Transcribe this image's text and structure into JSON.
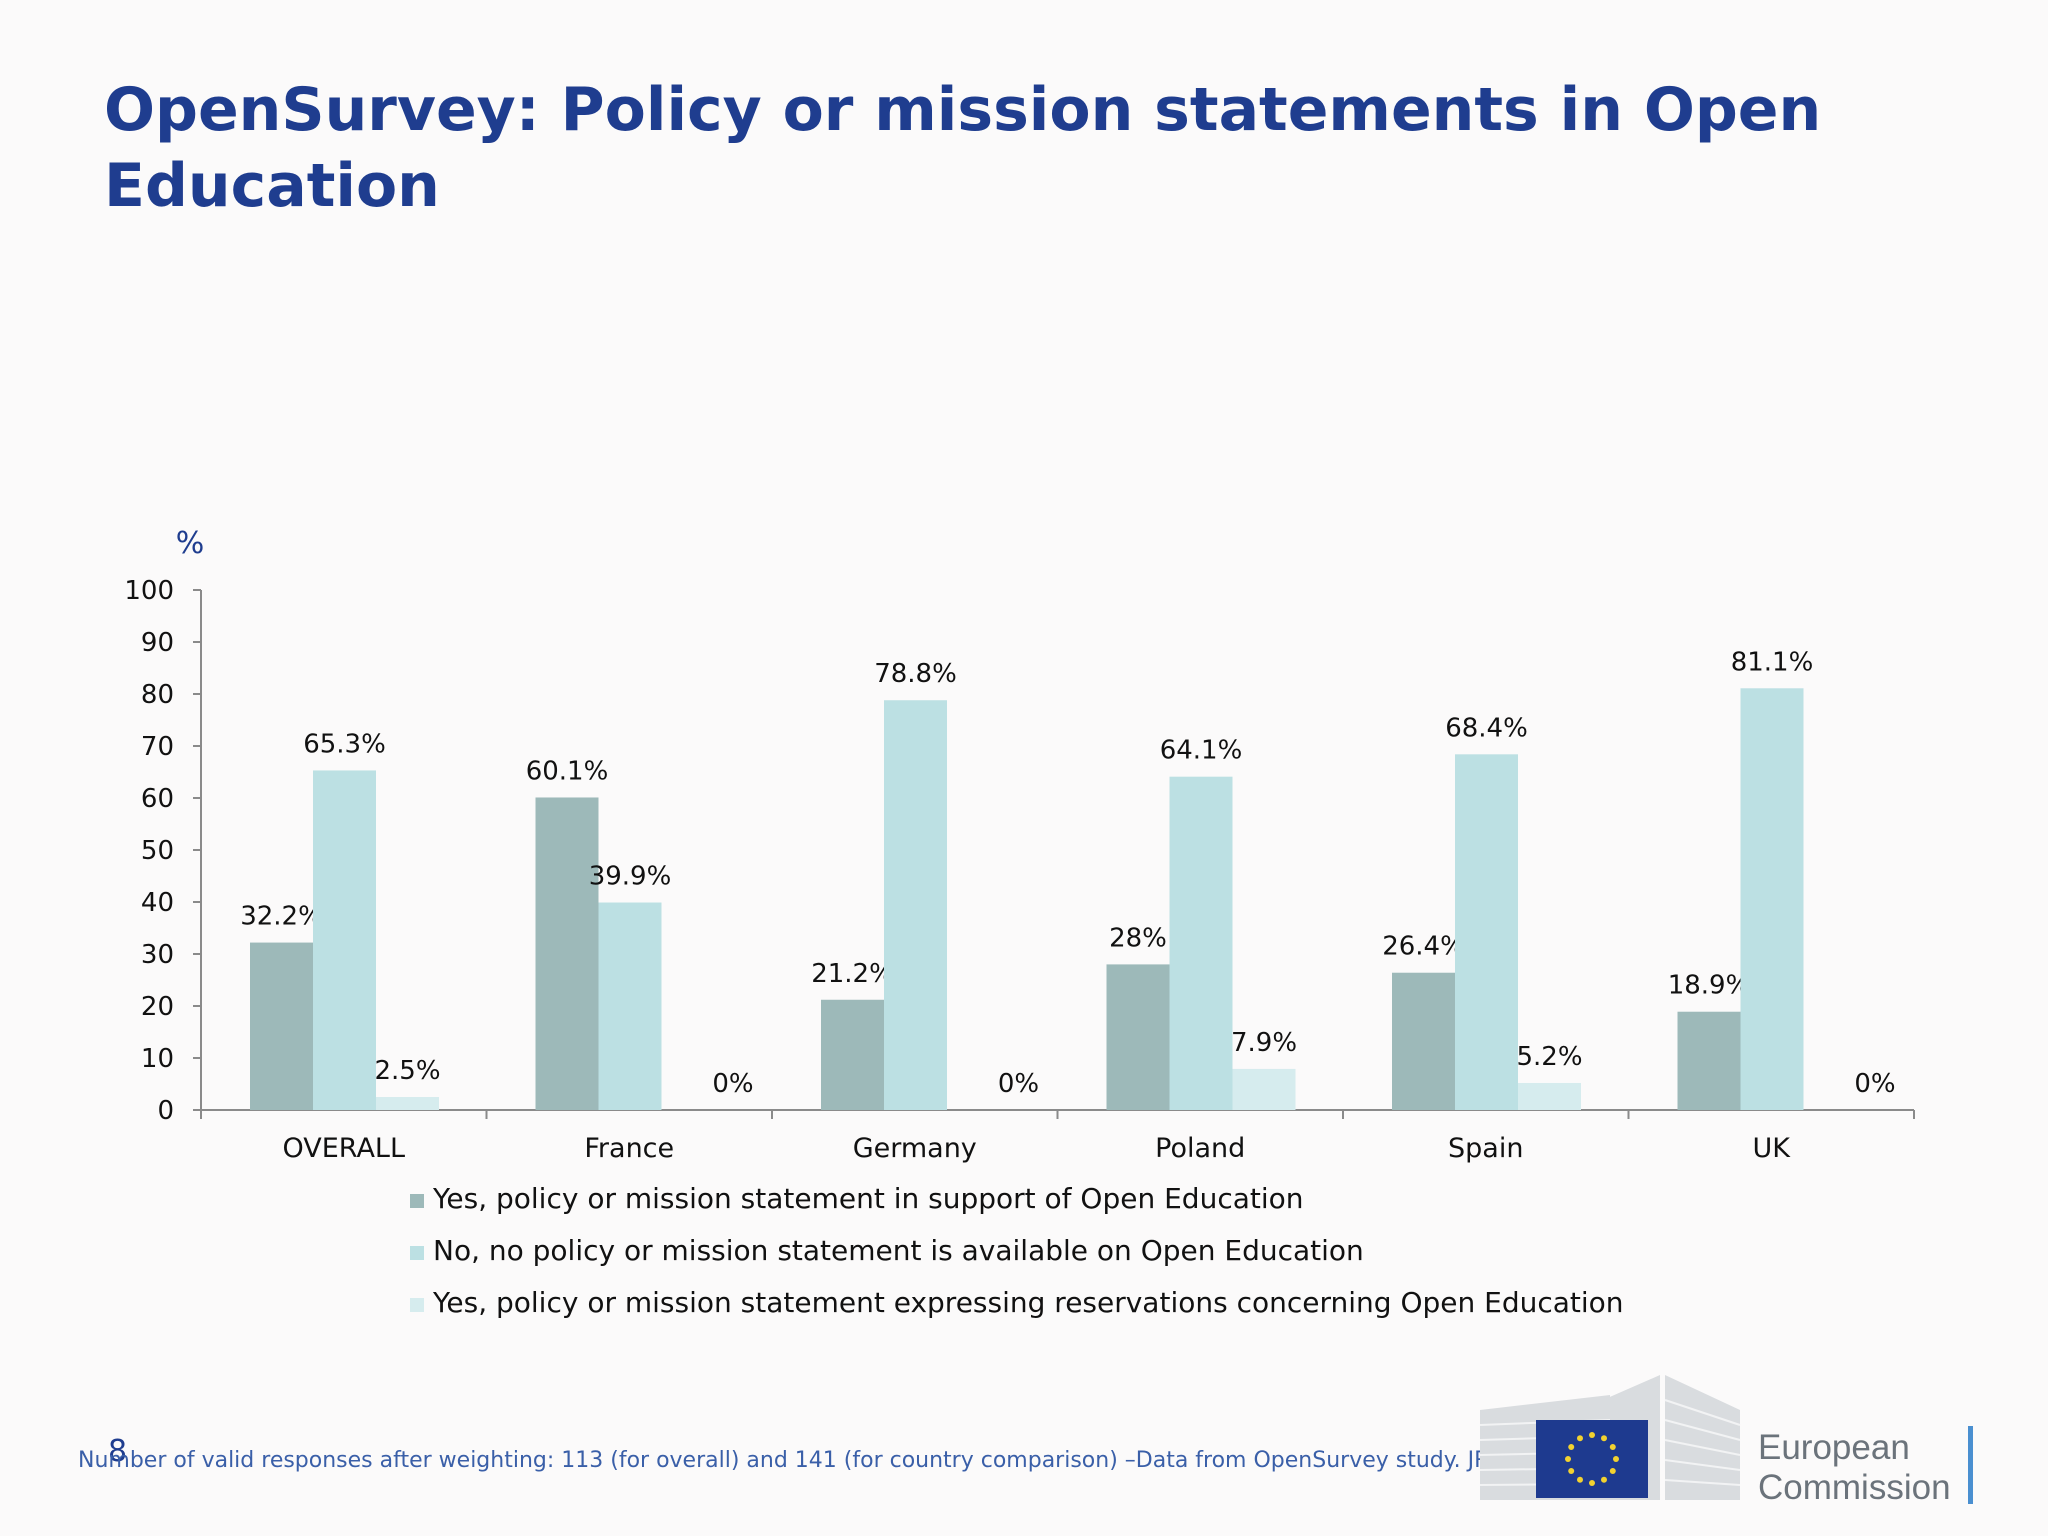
{
  "page": {
    "title": "OpenSurvey: Policy or mission statements in Open Education",
    "page_number": "8",
    "footnote": "Number of valid responses after weighting: 113 (for overall) and 141 (for country comparison) –Data from OpenSurvey study. JRC-IPTS 2015.",
    "logo": {
      "line1": "European",
      "line2": "Commission"
    }
  },
  "colors": {
    "title": "#1f3d8f",
    "series1": "#9db9b9",
    "series2": "#bce0e3",
    "series3": "#d6ecee",
    "axis": "#8a8a8a"
  },
  "chart_data": {
    "type": "bar",
    "unit_label": "%",
    "categories": [
      "OVERALL",
      "France",
      "Germany",
      "Poland",
      "Spain",
      "UK"
    ],
    "series": [
      {
        "name": "Yes, policy or mission statement in support of Open Education",
        "values": [
          32.2,
          60.1,
          21.2,
          28,
          26.4,
          18.9
        ],
        "labels": [
          "32.2%",
          "60.1%",
          "21.2%",
          "28%",
          "26.4%",
          "18.9%"
        ]
      },
      {
        "name": "No, no policy or mission statement is available on Open Education",
        "values": [
          65.3,
          39.9,
          78.8,
          64.1,
          68.4,
          81.1
        ],
        "labels": [
          "65.3%",
          "39.9%",
          "78.8%",
          "64.1%",
          "68.4%",
          "81.1%"
        ]
      },
      {
        "name": "Yes, policy or mission statement expressing reservations concerning Open Education",
        "values": [
          2.5,
          0,
          0,
          7.9,
          5.2,
          0
        ],
        "labels": [
          "2.5%",
          "0%",
          "0%",
          "7.9%",
          "5.2%",
          "0%"
        ]
      }
    ],
    "ylim": [
      0,
      100
    ],
    "yticks": [
      0,
      10,
      20,
      30,
      40,
      50,
      60,
      70,
      80,
      90,
      100
    ],
    "legend_position": "bottom",
    "grid": false
  }
}
